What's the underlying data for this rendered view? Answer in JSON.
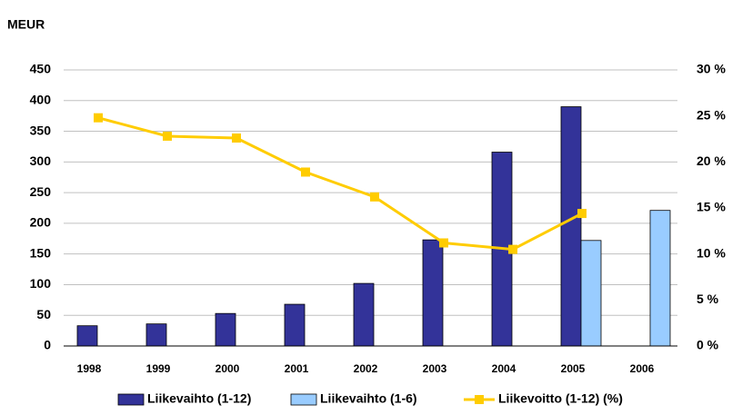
{
  "chart_data": {
    "type": "bar",
    "y_label": "MEUR",
    "categories": [
      "1998",
      "1999",
      "2000",
      "2001",
      "2002",
      "2003",
      "2004",
      "2005",
      "2006"
    ],
    "series": [
      {
        "name": "Liikevaihto (1-12)",
        "type": "bar",
        "color": "#333399",
        "values": [
          33,
          36,
          53,
          68,
          102,
          173,
          316,
          390,
          null
        ]
      },
      {
        "name": "Liikevaihto (1-6)",
        "type": "bar",
        "color": "#99ccff",
        "values": [
          null,
          null,
          null,
          null,
          null,
          null,
          null,
          172,
          221
        ]
      },
      {
        "name": "Liikevoitto (1-12) (%)",
        "type": "line",
        "axis": "y2",
        "color": "#ffcc00",
        "values": [
          24.8,
          22.8,
          22.6,
          18.9,
          16.2,
          11.2,
          10.5,
          14.4,
          null
        ]
      }
    ],
    "ylim": [
      0,
      450
    ],
    "yticks": [
      0,
      50,
      100,
      150,
      200,
      250,
      300,
      350,
      400,
      450
    ],
    "y2lim": [
      0,
      30
    ],
    "y2ticks": [
      {
        "value": 0,
        "label": "0 %"
      },
      {
        "value": 5,
        "label": "5 %"
      },
      {
        "value": 10,
        "label": "10 %"
      },
      {
        "value": 15,
        "label": "15 %"
      },
      {
        "value": 20,
        "label": "20 %"
      },
      {
        "value": 25,
        "label": "25 %"
      },
      {
        "value": 30,
        "label": "30 %"
      }
    ],
    "grid": true,
    "legend": "bottom"
  }
}
